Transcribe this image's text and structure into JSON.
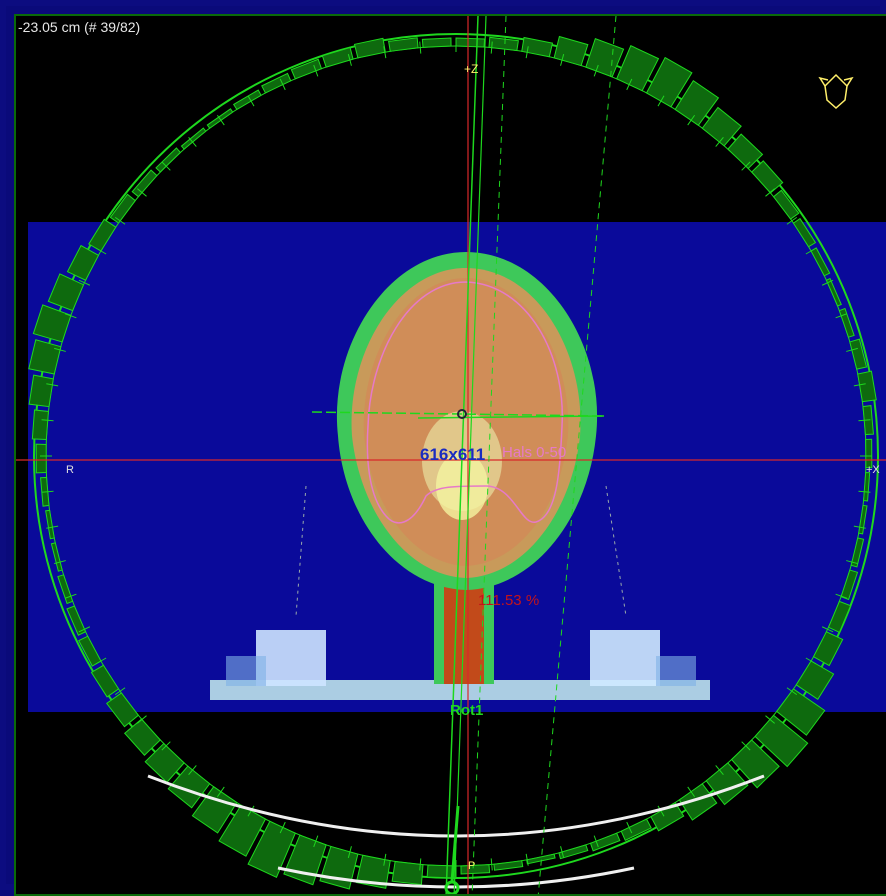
{
  "viewer": {
    "slice_position": "-23.05 cm (# 39/82)",
    "axis_plus_z": "+Z",
    "axis_r": "R",
    "axis_plus_x": "+X",
    "dose_grid": "616x611",
    "structure": "Hals 0-50",
    "max_dose": "111.53 %",
    "beam_name": "Rot1",
    "posterior_marker": "P"
  },
  "icons": {
    "orientation": "head-orientation-icon",
    "isocenter": "isocenter-icon"
  },
  "colors": {
    "background": "#000000",
    "frame": "#0c0c80",
    "arc": "#1ed81e",
    "arc_fill": "#0e6a0e",
    "isocenter_line": "#d8282a",
    "dose_blue": "#0a0a9a",
    "structure": "#e67ac8",
    "max_dose": "#c4141a"
  }
}
